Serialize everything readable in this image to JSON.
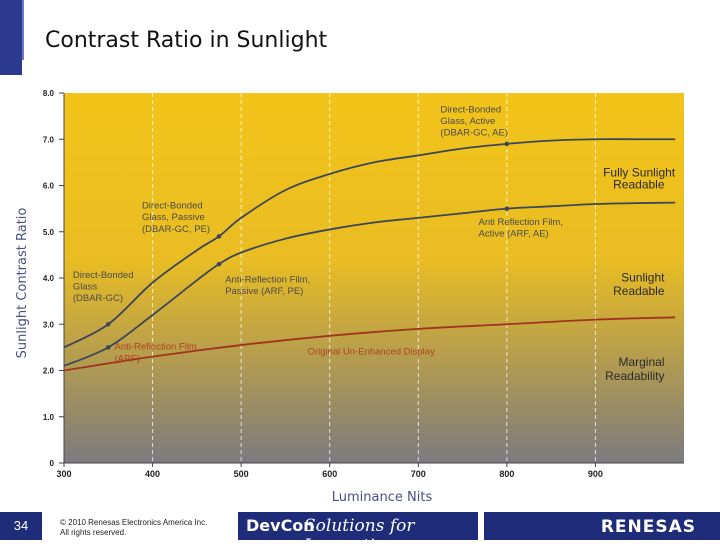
{
  "slide": {
    "title": "Contrast Ratio in Sunlight",
    "page_number": "34",
    "copyright_line1": "© 2010 Renesas Electronics America Inc.",
    "copyright_line2": "All rights reserved.",
    "event_name": "DevCon",
    "tagline": "Solutions for Innovation",
    "company": "RENESAS"
  },
  "colors": {
    "accent_blue": "#1e2c79",
    "panel_top": "#f2c419",
    "panel_bottom": "#7c7a7e",
    "curve_dark": "#3d4658",
    "curve_red": "#a0341f",
    "label_dark": "#4a4a4a",
    "label_red": "#b0411f"
  },
  "chart_data": {
    "type": "line",
    "xlabel": "Luminance Nits",
    "ylabel": "Sunlight Contrast Ratio",
    "xlim": [
      300,
      1000
    ],
    "ylim": [
      0,
      8
    ],
    "x_ticks": [
      "300",
      "400",
      "500",
      "600",
      "700",
      "800",
      "900"
    ],
    "y_ticks": [
      "0",
      "1.0",
      "2.0",
      "3.0",
      "4.0",
      "5.0",
      "6.0",
      "7.0",
      "8.0"
    ],
    "x_tick_values": [
      300,
      400,
      500,
      600,
      700,
      800,
      900
    ],
    "y_tick_values": [
      0,
      1,
      2,
      3,
      4,
      5,
      6,
      7,
      8
    ],
    "series": [
      {
        "name": "Direct-Bonded Glass, Active (DBAR-GC, AE)",
        "style": "dark",
        "x": [
          300,
          350,
          400,
          450,
          475,
          500,
          550,
          600,
          650,
          700,
          750,
          800,
          850,
          900,
          950,
          990
        ],
        "y": [
          2.5,
          3.0,
          3.9,
          4.6,
          4.9,
          5.3,
          5.9,
          6.25,
          6.5,
          6.65,
          6.8,
          6.9,
          6.97,
          7.0,
          7.0,
          7.0
        ]
      },
      {
        "name": "Anti Reflection Film, Active (ARF, AE)",
        "style": "dark",
        "x": [
          300,
          350,
          400,
          450,
          475,
          500,
          550,
          600,
          650,
          700,
          750,
          800,
          850,
          900,
          950,
          990
        ],
        "y": [
          2.1,
          2.5,
          3.2,
          3.95,
          4.3,
          4.55,
          4.85,
          5.05,
          5.2,
          5.3,
          5.4,
          5.5,
          5.55,
          5.6,
          5.62,
          5.63
        ]
      },
      {
        "name": "Original Un-Enhanced Display",
        "style": "red",
        "x": [
          300,
          400,
          500,
          600,
          700,
          800,
          900,
          990
        ],
        "y": [
          2.0,
          2.3,
          2.55,
          2.75,
          2.9,
          3.0,
          3.1,
          3.15
        ]
      }
    ],
    "markers": [
      {
        "x": 350,
        "y": 3.0
      },
      {
        "x": 475,
        "y": 4.9
      },
      {
        "x": 800,
        "y": 6.9
      },
      {
        "x": 350,
        "y": 2.5
      },
      {
        "x": 475,
        "y": 4.3
      },
      {
        "x": 800,
        "y": 5.5
      }
    ],
    "annotations": [
      {
        "id": "dbar-active-1",
        "text": "Direct-Bonded",
        "style": "dark",
        "x": 725,
        "y": 7.58,
        "anchor": "start"
      },
      {
        "id": "dbar-active-2",
        "text": "Glass, Active",
        "style": "dark",
        "x": 725,
        "y": 7.33,
        "anchor": "start"
      },
      {
        "id": "dbar-active-3",
        "text": "(DBAR-GC, AE)",
        "style": "dark",
        "x": 725,
        "y": 7.08,
        "anchor": "start"
      },
      {
        "id": "dbar-passive-1",
        "text": "Direct-Bonded",
        "style": "dark",
        "x": 388,
        "y": 5.5,
        "anchor": "start"
      },
      {
        "id": "dbar-passive-2",
        "text": "Glass, Passive",
        "style": "dark",
        "x": 388,
        "y": 5.25,
        "anchor": "start"
      },
      {
        "id": "dbar-passive-3",
        "text": "(DBAR-GC, PE)",
        "style": "dark",
        "x": 388,
        "y": 5.0,
        "anchor": "start"
      },
      {
        "id": "dbar-gc-1",
        "text": "Direct-Bonded",
        "style": "dark",
        "x": 310,
        "y": 4.0,
        "anchor": "start"
      },
      {
        "id": "dbar-gc-2",
        "text": "Glass",
        "style": "dark",
        "x": 310,
        "y": 3.75,
        "anchor": "start"
      },
      {
        "id": "dbar-gc-3",
        "text": "(DBAR-GC)",
        "style": "dark",
        "x": 310,
        "y": 3.5,
        "anchor": "start"
      },
      {
        "id": "arf-passive-1",
        "text": "Anti-Reflection Film,",
        "style": "dark",
        "x": 482,
        "y": 3.9,
        "anchor": "start"
      },
      {
        "id": "arf-passive-2",
        "text": "Passive (ARF, PE)",
        "style": "dark",
        "x": 482,
        "y": 3.65,
        "anchor": "start"
      },
      {
        "id": "arf-active-1",
        "text": "Anti Reflection Film,",
        "style": "dark",
        "x": 768,
        "y": 5.15,
        "anchor": "start"
      },
      {
        "id": "arf-active-2",
        "text": "Active (ARF, AE)",
        "style": "dark",
        "x": 768,
        "y": 4.9,
        "anchor": "start"
      },
      {
        "id": "arf-1",
        "text": "Anti-Reflection Film",
        "style": "red",
        "x": 357,
        "y": 2.45,
        "anchor": "start"
      },
      {
        "id": "arf-2",
        "text": "(ARF)",
        "style": "red",
        "x": 357,
        "y": 2.2,
        "anchor": "start"
      },
      {
        "id": "original",
        "text": "Original Un-Enhanced Display",
        "style": "red",
        "x": 575,
        "y": 2.35,
        "anchor": "start"
      },
      {
        "id": "fully-sunlight-1",
        "text": "Fully Sunlight",
        "style": "label",
        "x": 990,
        "y": 6.2,
        "anchor": "end"
      },
      {
        "id": "fully-sunlight-2",
        "text": "Readable",
        "style": "label",
        "x": 978,
        "y": 5.93,
        "anchor": "end"
      },
      {
        "id": "sunlight-readable-1",
        "text": "Sunlight",
        "style": "label",
        "x": 978,
        "y": 3.92,
        "anchor": "end"
      },
      {
        "id": "sunlight-readable-2",
        "text": "Readable",
        "style": "label",
        "x": 978,
        "y": 3.63,
        "anchor": "end"
      },
      {
        "id": "marginal-1",
        "text": "Marginal",
        "style": "label",
        "x": 978,
        "y": 2.1,
        "anchor": "end"
      },
      {
        "id": "marginal-2",
        "text": "Readability",
        "style": "label",
        "x": 978,
        "y": 1.8,
        "anchor": "end"
      }
    ]
  }
}
